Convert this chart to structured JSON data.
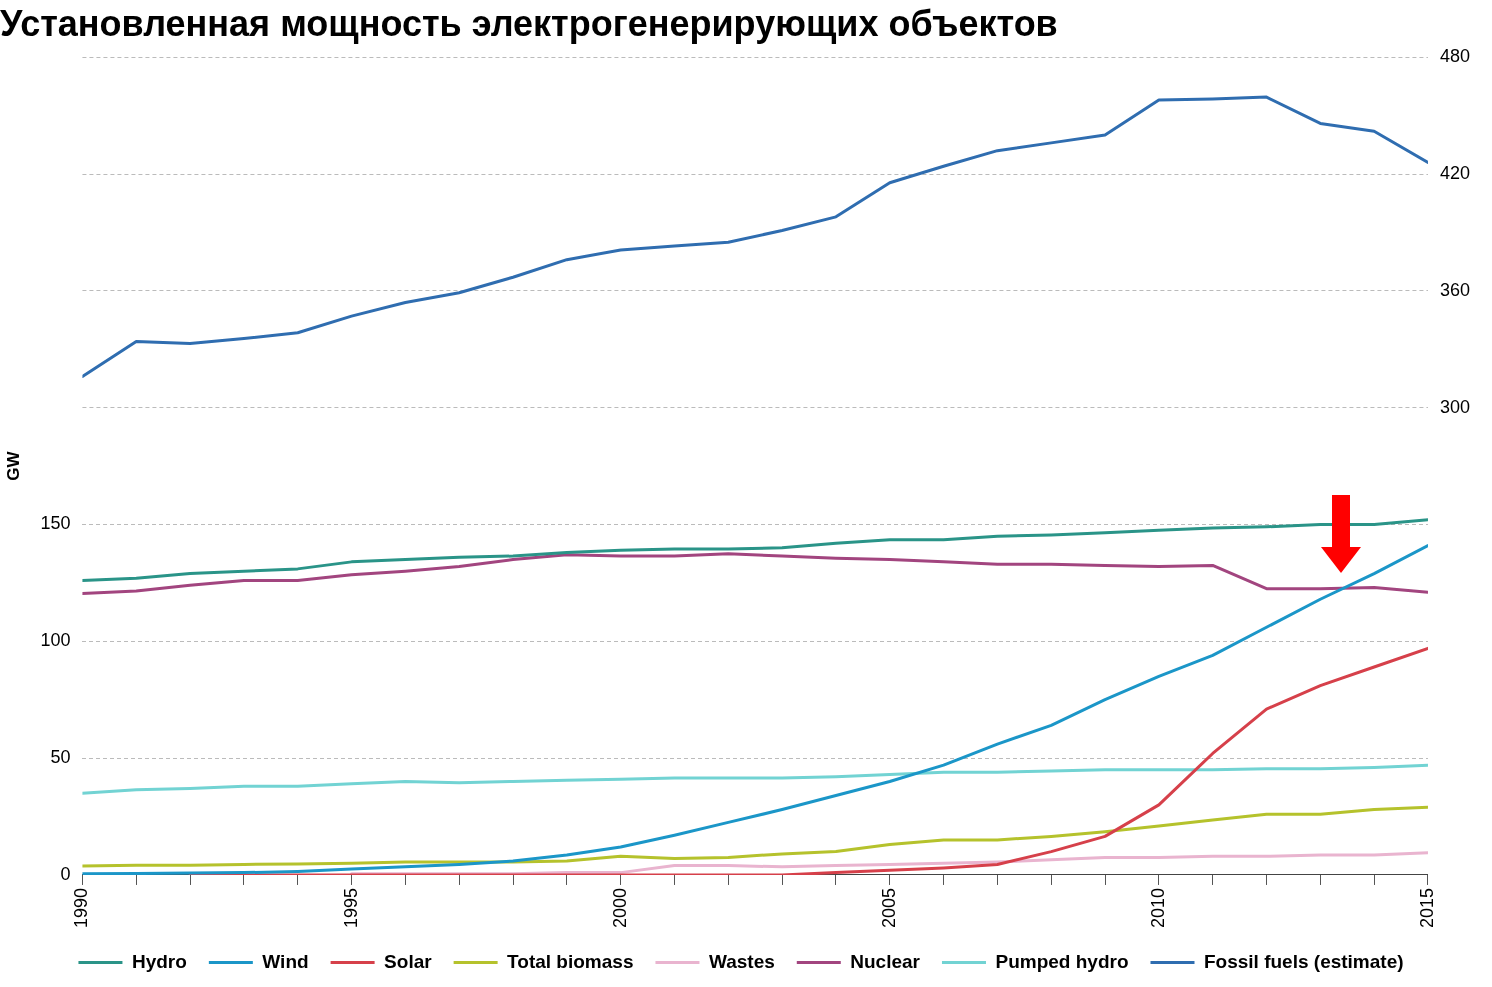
{
  "chart_data": {
    "type": "line",
    "title": "Установленная мощность электрогенерирующих объектов",
    "ylabel": "GW",
    "x": [
      1990,
      1991,
      1992,
      1993,
      1994,
      1995,
      1996,
      1997,
      1998,
      1999,
      2000,
      2001,
      2002,
      2003,
      2004,
      2005,
      2006,
      2007,
      2008,
      2009,
      2010,
      2011,
      2012,
      2013,
      2014,
      2015
    ],
    "xlim": [
      1990,
      2015
    ],
    "xticks": [
      1990,
      {
        "value": 1991,
        "label": null
      },
      {
        "value": 1992,
        "label": null
      },
      {
        "value": 1993,
        "label": null
      },
      {
        "value": 1994,
        "label": null
      },
      1995,
      {
        "value": 1996,
        "label": null
      },
      {
        "value": 1997,
        "label": null
      },
      {
        "value": 1998,
        "label": null
      },
      {
        "value": 1999,
        "label": null
      },
      2000,
      {
        "value": 2001,
        "label": null
      },
      {
        "value": 2002,
        "label": null
      },
      {
        "value": 2003,
        "label": null
      },
      {
        "value": 2004,
        "label": null
      },
      2005,
      {
        "value": 2006,
        "label": null
      },
      {
        "value": 2007,
        "label": null
      },
      {
        "value": 2008,
        "label": null
      },
      {
        "value": 2009,
        "label": null
      },
      2010,
      {
        "value": 2011,
        "label": null
      },
      {
        "value": 2012,
        "label": null
      },
      {
        "value": 2013,
        "label": null
      },
      {
        "value": 2014,
        "label": null
      },
      2015
    ],
    "ylim": [
      0,
      350
    ],
    "yticks": [
      0,
      50,
      100,
      150
    ],
    "y2lim": [
      60,
      480
    ],
    "y2ticks": [
      300,
      360,
      420,
      480
    ],
    "grid": "y",
    "legend": "bottom",
    "marker": "none",
    "line_style": "solid",
    "series": [
      {
        "name": "Hydro",
        "color": "#2a9488",
        "values": [
          126,
          127,
          129,
          130,
          131,
          134,
          135,
          136,
          136.5,
          138,
          139,
          139.5,
          139.5,
          140,
          142,
          143.5,
          143.5,
          145,
          145.5,
          146.5,
          147.5,
          148.5,
          149,
          150,
          150,
          152
        ]
      },
      {
        "name": "Wind",
        "color": "#1b96c8",
        "values": [
          0.5,
          0.6,
          0.8,
          1,
          1.5,
          2.5,
          3.5,
          4.5,
          6,
          8.5,
          12,
          17,
          22.5,
          28,
          34,
          40,
          47,
          56,
          64,
          75,
          85,
          94,
          106,
          118,
          129,
          141
        ]
      },
      {
        "name": "Solar",
        "color": "#d6404a",
        "values": [
          null,
          null,
          0,
          0,
          0,
          0,
          0,
          0,
          0,
          0,
          0,
          0,
          0,
          0,
          1,
          2,
          3,
          4.5,
          10,
          16.5,
          30,
          52,
          71,
          81,
          89,
          97
        ]
      },
      {
        "name": "Total biomass",
        "color": "#b5c22c",
        "values": [
          3.8,
          4.2,
          4.2,
          4.5,
          4.7,
          5,
          5.5,
          5.5,
          5.5,
          6,
          8,
          7,
          7.5,
          9,
          10,
          13,
          15,
          15,
          16.5,
          18.5,
          21,
          23.5,
          26,
          26,
          28,
          29
        ]
      },
      {
        "name": "Wastes",
        "color": "#e9b4cf",
        "values": [
          null,
          null,
          null,
          null,
          null,
          0.5,
          0.5,
          0.5,
          0.5,
          1,
          1,
          4,
          4,
          3.5,
          4,
          4.5,
          5,
          5.5,
          6.5,
          7.5,
          7.5,
          8,
          8,
          8.5,
          8.5,
          9.5
        ]
      },
      {
        "name": "Nuclear",
        "color": "#a2457f",
        "values": [
          120.5,
          121.5,
          124,
          126,
          126,
          128.5,
          130,
          132,
          135,
          137,
          136.5,
          136.5,
          137.5,
          136.5,
          135.5,
          135,
          134,
          133,
          133,
          132.5,
          132,
          132.5,
          122.5,
          122.5,
          123,
          121
        ]
      },
      {
        "name": "Pumped hydro",
        "color": "#72d3d3",
        "values": [
          35,
          36.5,
          37,
          38,
          38,
          39,
          40,
          39.5,
          40,
          40.5,
          41,
          41.5,
          41.5,
          41.5,
          42,
          43,
          44,
          44,
          44.5,
          45,
          45,
          45,
          45.5,
          45.5,
          46,
          47
        ]
      },
      {
        "name": "Fossil fuels (estimate)",
        "color": "#2f6db0",
        "axis": "y2",
        "values": [
          316,
          334,
          333,
          335.5,
          338.5,
          347,
          354,
          359,
          367,
          376,
          381,
          383,
          385,
          391,
          398,
          415.5,
          424,
          432,
          436,
          440,
          458,
          458.5,
          459.5,
          446,
          442,
          426
        ]
      }
    ]
  }
}
